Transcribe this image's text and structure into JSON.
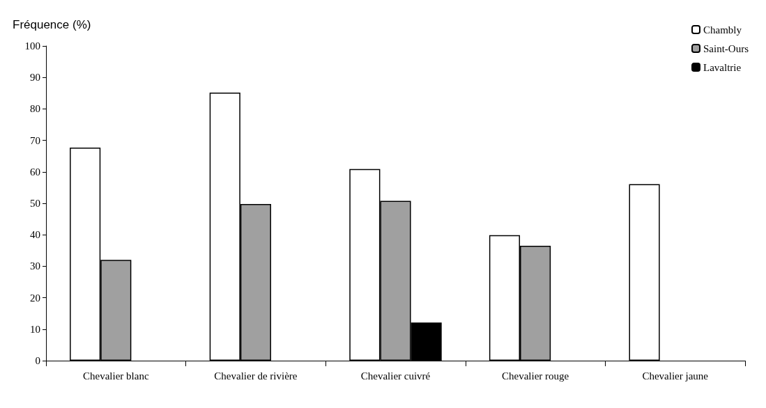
{
  "chart_data": {
    "type": "bar",
    "ylabel": "Fréquence (%)",
    "categories": [
      "Chevalier blanc",
      "Chevalier de rivière",
      "Chevalier cuivré",
      "Chevalier rouge",
      "Chevalier jaune"
    ],
    "series": [
      {
        "name": "Chambly",
        "color": "#ffffff",
        "values": [
          67.7,
          85.2,
          60.9,
          39.9,
          56.1
        ]
      },
      {
        "name": "Saint-Ours",
        "color": "#a0a0a0",
        "values": [
          32.0,
          49.8,
          50.8,
          36.5,
          null
        ]
      },
      {
        "name": "Lavaltrie",
        "color": "#000000",
        "values": [
          null,
          null,
          12.1,
          null,
          null
        ]
      }
    ],
    "ylim": [
      0,
      100
    ],
    "yticks": [
      0,
      10,
      20,
      30,
      40,
      50,
      60,
      70,
      80,
      90,
      100
    ],
    "grid": false,
    "legend": "top right"
  }
}
